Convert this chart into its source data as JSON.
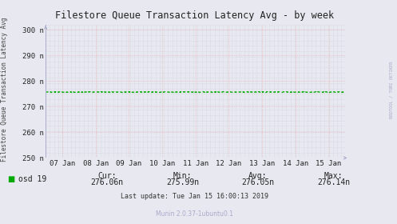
{
  "title": "Filestore Queue Transaction Latency Avg - by week",
  "ylabel": "Filestore Queue Transaction Latency Avg",
  "right_label": "RRDTOOL / TOBI OETIKER",
  "bg_color": "#e8e8f0",
  "plot_bg_color": "#e8e8f0",
  "minor_grid_color": "#c8c8d8",
  "major_grid_color": "#e8a8a8",
  "border_color": "#aaaacc",
  "arrow_color": "#aaaacc",
  "ylim": [
    250,
    302
  ],
  "yticks": [
    250,
    260,
    270,
    280,
    290,
    300
  ],
  "ytick_labels": [
    "250 n",
    "260 n",
    "270 n",
    "280 n",
    "290 n",
    "300 n"
  ],
  "xtick_positions": [
    0,
    1,
    2,
    3,
    4,
    5,
    6,
    7,
    8
  ],
  "xtick_labels": [
    "07 Jan",
    "08 Jan",
    "09 Jan",
    "10 Jan",
    "11 Jan",
    "12 Jan",
    "13 Jan",
    "14 Jan",
    "15 Jan"
  ],
  "line_value": 275.7,
  "line_color": "#00aa00",
  "line_width": 0.9,
  "legend_label": "osd 19",
  "legend_color": "#00aa00",
  "cur_label": "Cur:",
  "cur_value": "276.06n",
  "min_label": "Min:",
  "min_value": "275.99n",
  "avg_label": "Avg:",
  "avg_value": "276.05n",
  "max_label": "Max:",
  "max_value": "276.14n",
  "last_update": "Last update: Tue Jan 15 16:00:13 2019",
  "munin_label": "Munin 2.0.37-1ubuntu0.1",
  "title_fontsize": 8.5,
  "axis_fontsize": 6.5,
  "legend_fontsize": 7,
  "footnote_fontsize": 6
}
